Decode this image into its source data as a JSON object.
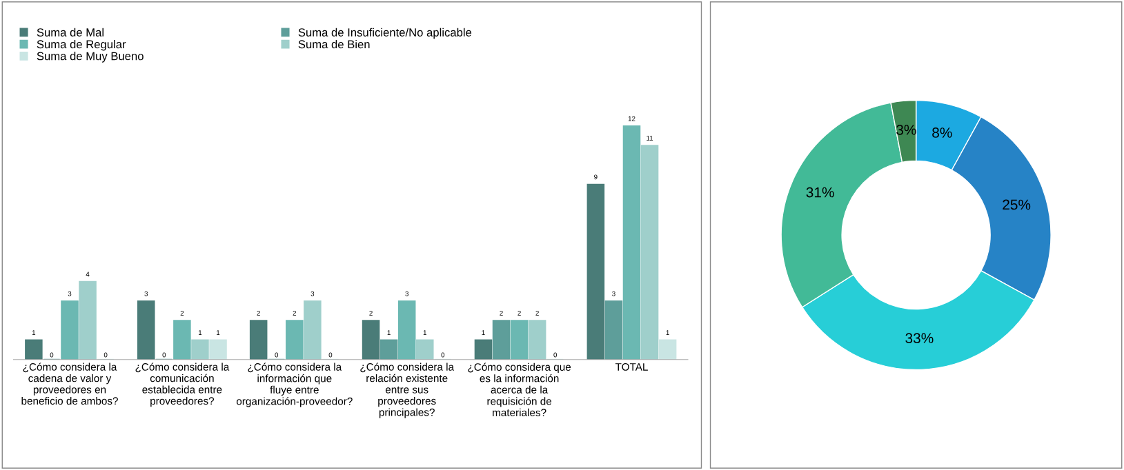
{
  "chart_data": [
    {
      "type": "bar",
      "categories": [
        "¿Cómo considera la cadena de valor y proveedores en beneficio de ambos?",
        "¿Cómo considera la comunicación establecida entre proveedores?",
        "¿Cómo considera la información que fluye entre organización-proveedor?",
        "¿Cómo considera la relación existente entre sus proveedores principales?",
        "¿Cómo considera que es la información acerca de la requisición de materiales?",
        "TOTAL"
      ],
      "series": [
        {
          "name": "Suma de Mal",
          "color": "#4a7c78",
          "values": [
            1,
            3,
            2,
            2,
            1,
            9
          ],
          "value_labels": [
            "1",
            "3",
            "2",
            "2",
            "1",
            "9"
          ]
        },
        {
          "name": "Suma de Insuficiente/No aplicable",
          "color": "#5e9e9a",
          "values": [
            0,
            0,
            0,
            1,
            2,
            3
          ],
          "value_labels": [
            "0",
            "0",
            "0",
            "1",
            "2",
            "3"
          ]
        },
        {
          "name": "Suma de Regular",
          "color": "#6bb8b2",
          "values": [
            3,
            2,
            2,
            3,
            2,
            12
          ],
          "value_labels": [
            "3",
            "2",
            "2",
            "3",
            "2",
            "12"
          ]
        },
        {
          "name": "Suma de Bien",
          "color": "#9fcfcb",
          "values": [
            4,
            1,
            3,
            1,
            2,
            11
          ],
          "value_labels": [
            "4",
            "1",
            "3",
            "1",
            "2",
            "11"
          ]
        },
        {
          "name": "Suma de Muy Bueno",
          "color": "#c9e5e3",
          "values": [
            0,
            1,
            0,
            0,
            0,
            1
          ],
          "value_labels": [
            "0",
            "1",
            "0",
            "0",
            "0",
            "1"
          ]
        }
      ],
      "legend": "top",
      "grid": false
    },
    {
      "type": "donut",
      "categories": [
        null,
        null,
        null,
        null,
        null
      ],
      "values": [
        8,
        25,
        33,
        31,
        3
      ],
      "colors": [
        "#1ca9e1",
        "#2683c6",
        "#27ced7",
        "#42ba97",
        "#3e8853"
      ],
      "value_labels": [
        "8%",
        "25%",
        "33%",
        "31%",
        "3%"
      ],
      "legend": false
    }
  ]
}
